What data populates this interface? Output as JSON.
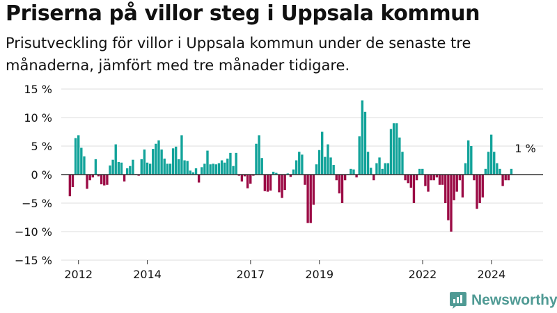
{
  "title": "Priserna på villor steg i Uppsala kommun",
  "subtitle": "Prisutveckling för villor i Uppsala kommun under de senaste tre månaderna, jämfört med tre månader tidigare.",
  "brand": {
    "name": "Newsworthy",
    "icon": "newsworthy-logo-icon",
    "color": "#4f9a94"
  },
  "colors": {
    "positive": "#12a39a",
    "negative": "#9b0b45",
    "grid": "#dddddd",
    "zero_line": "#333333"
  },
  "chart_data": {
    "type": "bar",
    "title": "Priserna på villor steg i Uppsala kommun",
    "xlabel": "",
    "ylabel": "",
    "ylim": [
      -15,
      15
    ],
    "yticks": [
      -15,
      -10,
      -5,
      0,
      5,
      10,
      15
    ],
    "ytick_labels": [
      "−15 %",
      "−10 %",
      "−5 %",
      "0 %",
      "5 %",
      "10 %",
      "15 %"
    ],
    "x_start": 2011.75,
    "x_step": 0.0833,
    "xlim": [
      2011.5,
      2025.5
    ],
    "xticks": [
      2012,
      2014,
      2017,
      2019,
      2022,
      2024
    ],
    "xtick_labels": [
      "2012",
      "2014",
      "2017",
      "2019",
      "2022",
      "2024"
    ],
    "grid": true,
    "legend": "none",
    "values": [
      -3.8,
      -2.2,
      6.4,
      6.9,
      4.7,
      3.2,
      -2.5,
      -1,
      -0.5,
      2.7,
      -0.3,
      -1.7,
      -1.9,
      -1.8,
      1.6,
      2.6,
      5.3,
      2.2,
      2.1,
      -1.2,
      1.1,
      1.5,
      2.6,
      0.1,
      -0.2,
      2.7,
      4.4,
      2.1,
      1.9,
      4.5,
      5.4,
      6,
      4.4,
      2.8,
      1.9,
      1.9,
      4.6,
      4.9,
      2.7,
      6.9,
      2.5,
      2.4,
      0.7,
      0.4,
      1.1,
      -1.4,
      1.3,
      1.9,
      4.2,
      1.8,
      1.9,
      1.8,
      2,
      2.5,
      2.1,
      2.8,
      3.8,
      1.5,
      3.8,
      -0.2,
      -1.2,
      -0.3,
      -2.4,
      -1.6,
      -0.2,
      5.4,
      6.9,
      2.9,
      -2.9,
      -3,
      -2.8,
      0.5,
      0.3,
      -3.1,
      -4.1,
      -2.7,
      0.2,
      -0.4,
      0.9,
      2.5,
      4,
      3.5,
      -1.8,
      -8.5,
      -8.5,
      -5.3,
      1.8,
      4.3,
      7.5,
      3.1,
      5.3,
      3,
      1.7,
      -1,
      -3.3,
      -5,
      -1,
      0.1,
      1,
      0.9,
      -0.5,
      6.7,
      13,
      11,
      4,
      1.2,
      -1,
      2,
      3,
      1,
      2,
      2,
      8,
      9,
      9,
      6.5,
      4,
      -1,
      -1.5,
      -2.3,
      -5,
      -1,
      1,
      1,
      -2,
      -3,
      -1,
      -1,
      -0.5,
      -1.8,
      -1.8,
      -5,
      -8,
      -10,
      -4.5,
      -3,
      -1,
      -4,
      2,
      6,
      5,
      -1,
      -6,
      -5,
      -4,
      1,
      4,
      7,
      4,
      2,
      1,
      -2,
      -1,
      -1,
      1
    ],
    "annotations": [
      {
        "text": "1 %",
        "x": 2025.0,
        "y": 1.0
      }
    ]
  }
}
